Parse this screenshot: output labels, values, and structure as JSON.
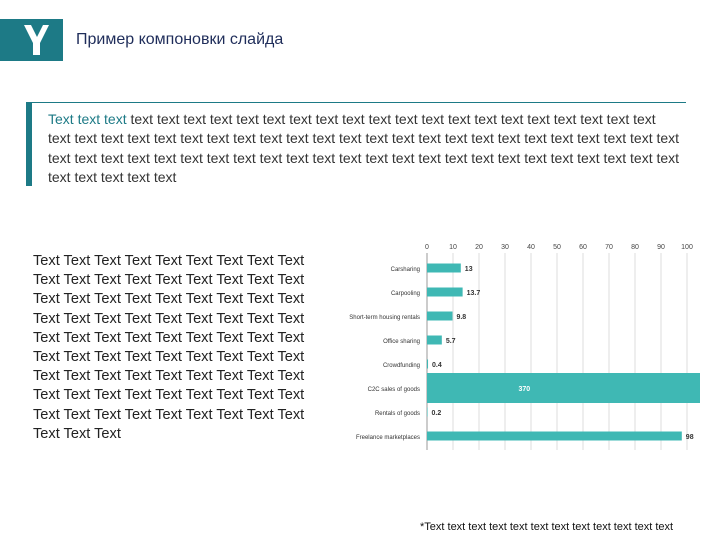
{
  "header": {
    "title": "Пример компоновки слайда",
    "logo_icon": "y-logo-icon"
  },
  "quote": {
    "accent": "Text text text",
    "body": "text text text text text text text text text text text text text text text text text text text text text text text text text text text text text text text text text text text text text text text text text text text text text text text text text text text text text text text text text text text text text text text text text text text text text text text text text"
  },
  "left_text": "Text Text Text Text Text Text Text Text Text Text Text Text Text Text Text Text Text Text Text Text Text Text Text Text Text Text Text Text Text Text Text Text Text Text Text Text Text Text Text Text Text Text Text Text Text Text Text Text Text Text Text Text Text Text Text Text Text Text Text Text Text Text Text Text Text Text Text Text Text Text Text Text Text Text Text Text Text Text Text Text Text Text Text Text",
  "colors": {
    "accent": "#1d7a86",
    "bar": "#3fb8b4",
    "title": "#1f2d5a"
  },
  "chart_data": {
    "type": "bar",
    "orientation": "horizontal",
    "categories": [
      "Carsharing",
      "Carpooling",
      "Short-term housing rentals",
      "Office sharing",
      "Crowdfunding",
      "C2C sales of goods",
      "Rentals of goods",
      "Freelance marketplaces"
    ],
    "values": [
      13,
      13.7,
      9.8,
      5.7,
      0.4,
      370,
      0.2,
      98
    ],
    "value_labels": [
      "13",
      "13.7",
      "9.8",
      "5.7",
      "0.4",
      "370",
      "0.2",
      "98"
    ],
    "xlim": [
      0,
      100
    ],
    "xticks": [
      "0",
      "10",
      "20",
      "30",
      "40",
      "50",
      "60",
      "70",
      "80",
      "90",
      "100"
    ],
    "grid": true,
    "title": "",
    "xlabel": "",
    "ylabel": ""
  },
  "footnote": "*Text text text text text text text text text text text text"
}
